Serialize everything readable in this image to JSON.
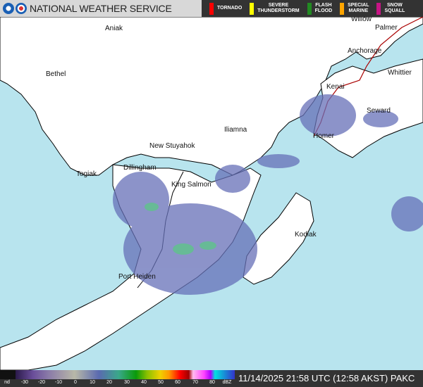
{
  "header": {
    "title": "NATIONAL WEATHER SERVICE",
    "logos": [
      "noaa-logo",
      "nws-logo"
    ]
  },
  "warnings": [
    {
      "label": "TORNADO",
      "color": "#ff0000"
    },
    {
      "label": "SEVERE\nTHUNDERSTORM",
      "color": "#ffff00"
    },
    {
      "label": "FLASH\nFLOOD",
      "color": "#228b22"
    },
    {
      "label": "SPECIAL\nMARINE",
      "color": "#ffa500"
    },
    {
      "label": "SNOW\nSQUALL",
      "color": "#c71585"
    }
  ],
  "map": {
    "ocean_color": "#b8e4ee",
    "land_color": "#ffffff",
    "cities": [
      "Aniak",
      "Palmer",
      "Willow",
      "Anchorage",
      "Bethel",
      "Whittier",
      "Kenai",
      "Seward",
      "Iliamna",
      "Homer",
      "New Stuyahok",
      "Dillingham",
      "Togiak",
      "King Salmon",
      "Kodiak",
      "Port Heiden"
    ]
  },
  "legend": {
    "ticks": [
      "nd",
      "-30",
      "-20",
      "-10",
      "0",
      "10",
      "20",
      "30",
      "40",
      "50",
      "60",
      "70",
      "80",
      "dBZ"
    ]
  },
  "status": {
    "timestamp": "11/14/2025 21:58 UTC (12:58 AKST)",
    "radar_site": "PAKC"
  }
}
